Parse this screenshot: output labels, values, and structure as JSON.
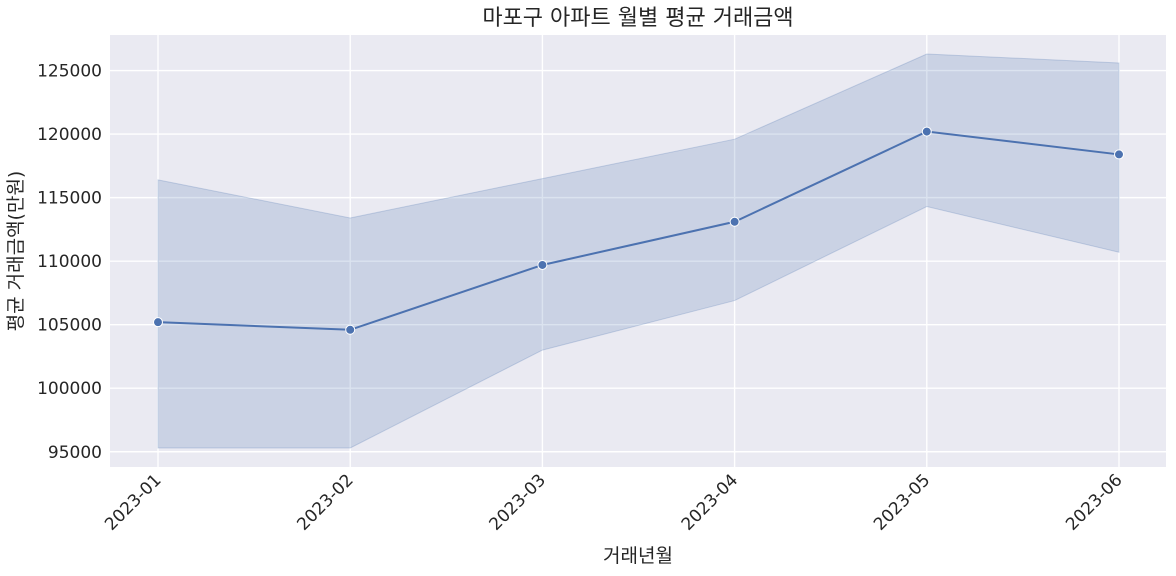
{
  "chart_data": {
    "type": "line",
    "title": "마포구 아파트 월별 평균 거래금액",
    "xlabel": "거래년월",
    "ylabel": "평균 거래금액(만원)",
    "categories": [
      "2023-01",
      "2023-02",
      "2023-03",
      "2023-04",
      "2023-05",
      "2023-06"
    ],
    "series": [
      {
        "values": [
          105200,
          104600,
          109700,
          113100,
          120200,
          118400
        ],
        "ci_upper": [
          116400,
          113400,
          116500,
          119600,
          126300,
          125600
        ],
        "ci_lower": [
          95300,
          95300,
          103000,
          106900,
          114300,
          110700
        ]
      }
    ],
    "yticks": [
      95000,
      100000,
      105000,
      110000,
      115000,
      120000,
      125000
    ],
    "ylim": [
      93800,
      127800
    ],
    "grid": true,
    "colors": {
      "background": "#eaeaf2",
      "grid": "#ffffff",
      "line": "#4c72b0",
      "band": "#4c72b0"
    }
  }
}
